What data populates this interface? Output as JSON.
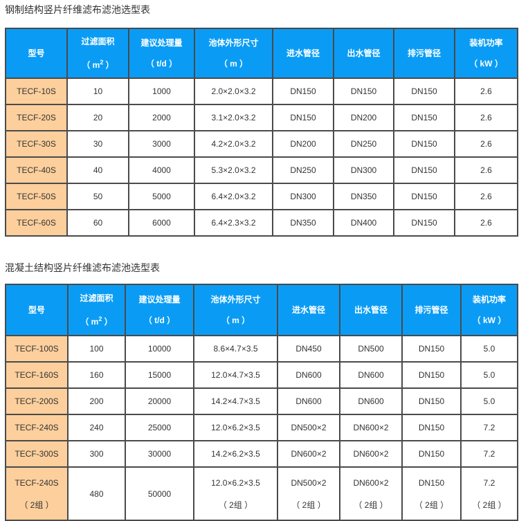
{
  "colors": {
    "header_bg": "#0a9cf5",
    "model_bg": "#fccf9c",
    "border": "#4a4a4a"
  },
  "headers": [
    {
      "l1": "型号",
      "l2": ""
    },
    {
      "l1": "过滤面积",
      "l2": "（ m",
      "sup": "2",
      "l2b": " ）"
    },
    {
      "l1": "建议处理量",
      "l2": "（ t/d ）"
    },
    {
      "l1": "池体外形尺寸",
      "l2": "（ m ）"
    },
    {
      "l1": "进水管径",
      "l2": ""
    },
    {
      "l1": "出水管径",
      "l2": ""
    },
    {
      "l1": "排污管径",
      "l2": ""
    },
    {
      "l1": "装机功率",
      "l2": "（ kW ）"
    }
  ],
  "table1": {
    "title": "钢制结构竖片纤维滤布滤池选型表",
    "rows": [
      [
        "TECF-10S",
        "10",
        "1000",
        "2.0×2.0×3.2",
        "DN150",
        "DN150",
        "DN150",
        "2.6"
      ],
      [
        "TECF-20S",
        "20",
        "2000",
        "3.1×2.0×3.2",
        "DN150",
        "DN200",
        "DN150",
        "2.6"
      ],
      [
        "TECF-30S",
        "30",
        "3000",
        "4.2×2.0×3.2",
        "DN200",
        "DN250",
        "DN150",
        "2.6"
      ],
      [
        "TECF-40S",
        "40",
        "4000",
        "5.3×2.0×3.2",
        "DN250",
        "DN300",
        "DN150",
        "2.6"
      ],
      [
        "TECF-50S",
        "50",
        "5000",
        "6.4×2.0×3.2",
        "DN300",
        "DN350",
        "DN150",
        "2.6"
      ],
      [
        "TECF-60S",
        "60",
        "6000",
        "6.4×2.3×3.2",
        "DN350",
        "DN400",
        "DN150",
        "2.6"
      ]
    ]
  },
  "table2": {
    "title": "混凝土结构竖片纤维滤布滤池选型表",
    "rows": [
      [
        "TECF-100S",
        "100",
        "10000",
        "8.6×4.7×3.5",
        "DN450",
        "DN500",
        "DN150",
        "5.0"
      ],
      [
        "TECF-160S",
        "160",
        "15000",
        "12.0×4.7×3.5",
        "DN600",
        "DN600",
        "DN150",
        "5.0"
      ],
      [
        "TECF-200S",
        "200",
        "20000",
        "14.2×4.7×3.5",
        "DN600",
        "DN600",
        "DN150",
        "5.0"
      ],
      [
        "TECF-240S",
        "240",
        "25000",
        "12.0×6.2×3.5",
        "DN500×2",
        "DN600×2",
        "DN150",
        "7.2"
      ],
      [
        "TECF-300S",
        "300",
        "30000",
        "14.2×6.2×3.5",
        "DN600×2",
        "DN600×2",
        "DN150",
        "7.2"
      ]
    ],
    "last_row": {
      "model": "TECF-240S",
      "area": "480",
      "capacity": "50000",
      "size": "12.0×6.2×3.5",
      "inlet": "DN500×2",
      "outlet": "DN600×2",
      "drain": "DN150",
      "power": "7.2",
      "group_note": "（ 2组 ）"
    }
  }
}
